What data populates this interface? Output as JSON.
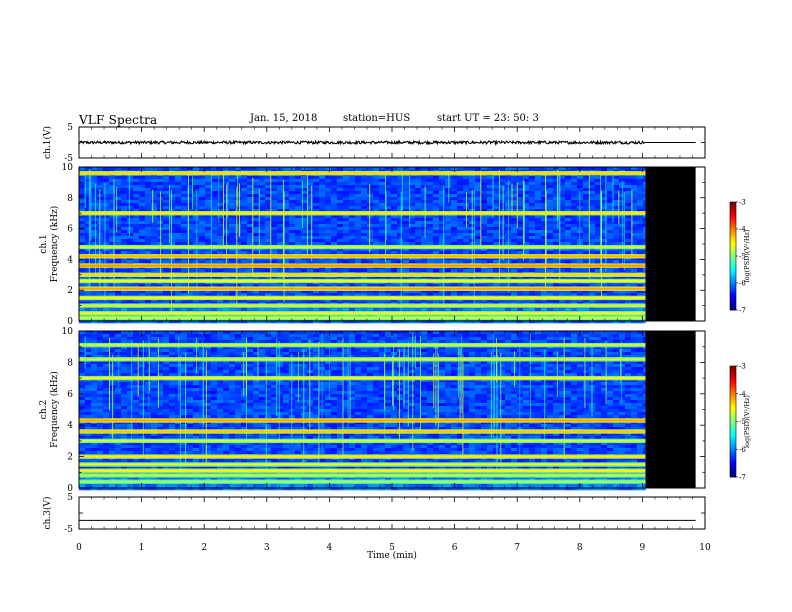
{
  "header": {
    "title": "VLF Spectra",
    "date": "Jan. 15, 2018",
    "station": "station=HUS",
    "start": "start UT =  23: 50: 3"
  },
  "chart_data": [
    {
      "type": "line",
      "panel": "ch1-waveform",
      "ylabel": "ch.1(V)",
      "ylim": [
        -5,
        5
      ],
      "yticks": [
        "5",
        "-5"
      ],
      "xlim": [
        0,
        10
      ],
      "series": [
        {
          "x": [
            0,
            9.05
          ],
          "y": [
            0,
            0
          ],
          "note_style": "noisy"
        },
        {
          "x": [
            9.05,
            9.85
          ],
          "y": [
            0,
            0
          ],
          "note_style": "flat"
        }
      ]
    },
    {
      "type": "heatmap",
      "panel": "ch1-spectrogram",
      "ylabel_line1": "ch.1",
      "ylabel_line2": "Frequency (kHz)",
      "ylim": [
        0,
        10
      ],
      "yticks": [
        "0",
        "2",
        "4",
        "6",
        "8",
        "10"
      ],
      "xlim": [
        0,
        10
      ],
      "data_end_min": 9.05,
      "band_freqs_khz": [
        9.6,
        7.0,
        4.8,
        4.2,
        3.6,
        3.0,
        2.6,
        2.1,
        1.5,
        1.0,
        0.5,
        0.2
      ],
      "band_strength": [
        0.75,
        0.7,
        0.5,
        0.85,
        0.95,
        0.75,
        0.6,
        0.9,
        0.65,
        0.55,
        0.6,
        0.5
      ],
      "colorbar": {
        "label": "log(PSD)(V²/Hz)",
        "ticks": [
          "-3",
          "-4",
          "-5",
          "-6",
          "-7"
        ],
        "range": [
          -7,
          -3
        ]
      }
    },
    {
      "type": "heatmap",
      "panel": "ch2-spectrogram",
      "ylabel_line1": "ch.2",
      "ylabel_line2": "Frequency (kHz)",
      "ylim": [
        0,
        10
      ],
      "yticks": [
        "0",
        "2",
        "4",
        "6",
        "8",
        "10"
      ],
      "xlim": [
        0,
        10
      ],
      "data_end_min": 9.05,
      "band_freqs_khz": [
        9.1,
        8.2,
        7.0,
        4.3,
        3.6,
        3.0,
        2.0,
        1.5,
        1.1,
        0.8,
        0.4
      ],
      "band_strength": [
        0.5,
        0.5,
        0.6,
        0.9,
        0.8,
        0.5,
        0.7,
        0.55,
        0.65,
        0.45,
        0.4
      ],
      "colorbar": {
        "label": "log(PSD)(V²/Hz)",
        "ticks": [
          "-3",
          "-4",
          "-5",
          "-6",
          "-7"
        ],
        "range": [
          -7,
          -3
        ]
      }
    },
    {
      "type": "line",
      "panel": "ch3-waveform",
      "ylabel": "ch.3(V)",
      "ylim": [
        -5,
        5
      ],
      "yticks": [
        "5",
        "-5"
      ],
      "xlim": [
        0,
        10
      ],
      "series": [
        {
          "x": [
            0,
            9.85
          ],
          "y": [
            -2.3,
            -2.3
          ]
        }
      ]
    }
  ],
  "xaxis": {
    "label": "Time (min)",
    "ticks": [
      "0",
      "1",
      "2",
      "3",
      "4",
      "5",
      "6",
      "7",
      "8",
      "9",
      "10"
    ]
  }
}
